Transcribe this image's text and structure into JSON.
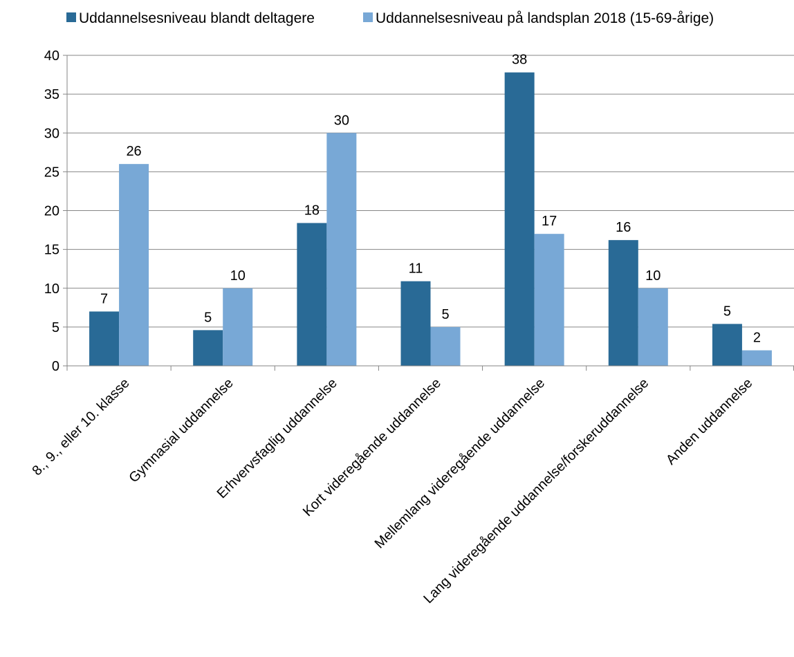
{
  "chart_data": {
    "type": "bar",
    "categories": [
      "8., 9., eller 10. klasse",
      "Gymnasial uddannelse",
      "Erhvervsfaglig uddannelse",
      "Kort videregående uddannelse",
      "Mellemlang videregående uddannelse",
      "Lang videregående uddannelse/forskeruddannelse",
      "Anden uddannelse"
    ],
    "series": [
      {
        "name": "Uddannelsesniveau blandt deltagere",
        "color": "#296a96",
        "values": [
          7,
          4.6,
          18.4,
          10.9,
          37.8,
          16.2,
          5.4
        ],
        "labels": [
          "7",
          "5",
          "18",
          "11",
          "38",
          "16",
          "5"
        ]
      },
      {
        "name": "Uddannelsesniveau på landsplan 2018 (15-69-årige)",
        "color": "#78a8d6",
        "values": [
          26,
          10,
          30,
          5,
          17,
          10,
          2
        ],
        "labels": [
          "26",
          "10",
          "30",
          "5",
          "17",
          "10",
          "2"
        ]
      }
    ],
    "yticks": [
      "0",
      "5",
      "10",
      "15",
      "20",
      "25",
      "30",
      "35",
      "40"
    ],
    "ylim": [
      0,
      40
    ],
    "grid": true,
    "legend_position": "top"
  }
}
